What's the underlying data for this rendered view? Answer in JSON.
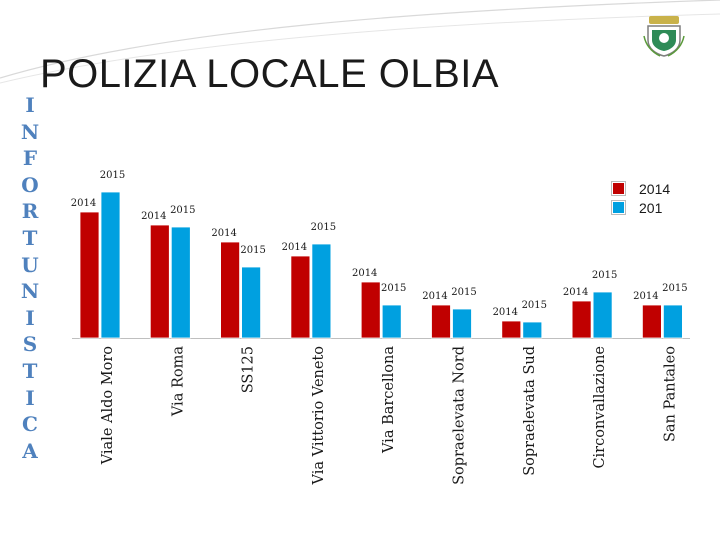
{
  "header": {
    "title": "POLIZIA LOCALE OLBIA",
    "side_word": [
      "I",
      "N",
      "F",
      "O",
      "R",
      "T",
      "U",
      "N",
      "I",
      "S",
      "T",
      "I",
      "C",
      "A"
    ]
  },
  "logo": {
    "icon": "coat-of-arms-icon"
  },
  "colors": {
    "red": "#c00000",
    "blue": "#00a0e0",
    "accent": "#4f81bd"
  },
  "legend": [
    {
      "label": "2014",
      "color": "#c00000"
    },
    {
      "label": "201",
      "color": "#00a0e0"
    }
  ],
  "chart_data": {
    "type": "bar",
    "categories": [
      "Viale Aldo Moro",
      "Via Roma",
      "SS125",
      "Via Vittorio Veneto",
      "Via Barcellona",
      "Sopraelevata Nord",
      "Sopraelevata Sud",
      "Circonvallazione",
      "San Pantaleo"
    ],
    "series": [
      {
        "name": "2014",
        "values": [
          126,
          113,
          96,
          82,
          56,
          33,
          17,
          37,
          33
        ]
      },
      {
        "name": "201",
        "values": [
          146,
          111,
          71,
          94,
          33,
          29,
          16,
          46,
          33
        ]
      }
    ],
    "data_labels": {
      "2014": [
        "2014",
        "2014",
        "2014",
        "2014",
        "2014",
        "2014",
        "2014",
        "2014",
        "2014"
      ],
      "2015": [
        "2015",
        "2015",
        "2015",
        "2015",
        "2015",
        "2015",
        "2015",
        "2015",
        "2015"
      ]
    },
    "ylim": [
      0,
      150
    ],
    "grid": false,
    "legend_position": "top-right"
  }
}
